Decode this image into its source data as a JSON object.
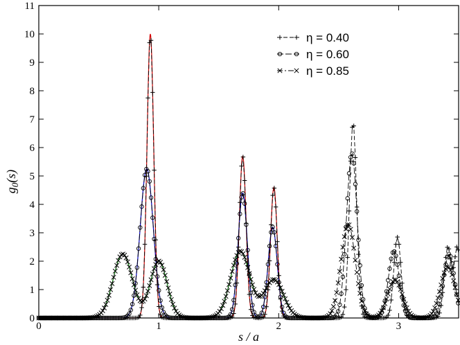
{
  "chart_data": {
    "type": "line",
    "xlabel": "s / a",
    "ylabel_main": "g",
    "ylabel_sub": "0",
    "ylabel_rest": "(s)",
    "xlim": [
      0,
      3.5
    ],
    "ylim": [
      0,
      11
    ],
    "x_ticks": [
      0,
      1,
      2,
      3
    ],
    "y_ticks": [
      0,
      1,
      2,
      3,
      4,
      5,
      6,
      7,
      8,
      9,
      10,
      11
    ],
    "legend_position": "top-right",
    "series": [
      {
        "name": "η = 0.40",
        "marker": "plus",
        "dash": "dashed",
        "color": "#000000",
        "fit_color": "#d40000",
        "peaks": [
          {
            "center": 0.93,
            "height": 10.0,
            "sigma": 0.028
          },
          {
            "center": 1.7,
            "height": 5.7,
            "sigma": 0.028
          },
          {
            "center": 1.96,
            "height": 4.6,
            "sigma": 0.028
          },
          {
            "center": 2.62,
            "height": 6.9,
            "sigma": 0.03
          },
          {
            "center": 2.99,
            "height": 2.85,
            "sigma": 0.03
          },
          {
            "center": 3.41,
            "height": 2.5,
            "sigma": 0.03
          },
          {
            "center": 3.49,
            "height": 2.45,
            "sigma": 0.025
          }
        ]
      },
      {
        "name": "η = 0.60",
        "marker": "circle",
        "dash": "longdash",
        "color": "#000000",
        "fit_color": "#0000c8",
        "peaks": [
          {
            "center": 0.9,
            "height": 5.25,
            "sigma": 0.055
          },
          {
            "center": 1.7,
            "height": 4.4,
            "sigma": 0.038
          },
          {
            "center": 1.95,
            "height": 3.2,
            "sigma": 0.038
          },
          {
            "center": 2.61,
            "height": 5.8,
            "sigma": 0.045
          },
          {
            "center": 2.96,
            "height": 2.35,
            "sigma": 0.045
          },
          {
            "center": 3.42,
            "height": 2.25,
            "sigma": 0.045
          }
        ]
      },
      {
        "name": "η = 0.85",
        "marker": "cross",
        "dash": "dashdot",
        "color": "#000000",
        "fit_color": "#008000",
        "peaks": [
          {
            "center": 0.7,
            "height": 2.25,
            "sigma": 0.08
          },
          {
            "center": 1.0,
            "height": 2.0,
            "sigma": 0.07
          },
          {
            "center": 1.68,
            "height": 2.35,
            "sigma": 0.08
          },
          {
            "center": 1.96,
            "height": 1.35,
            "sigma": 0.08
          },
          {
            "center": 2.58,
            "height": 3.3,
            "sigma": 0.06
          },
          {
            "center": 2.97,
            "height": 1.35,
            "sigma": 0.06
          },
          {
            "center": 3.41,
            "height": 1.8,
            "sigma": 0.06
          }
        ]
      }
    ]
  }
}
